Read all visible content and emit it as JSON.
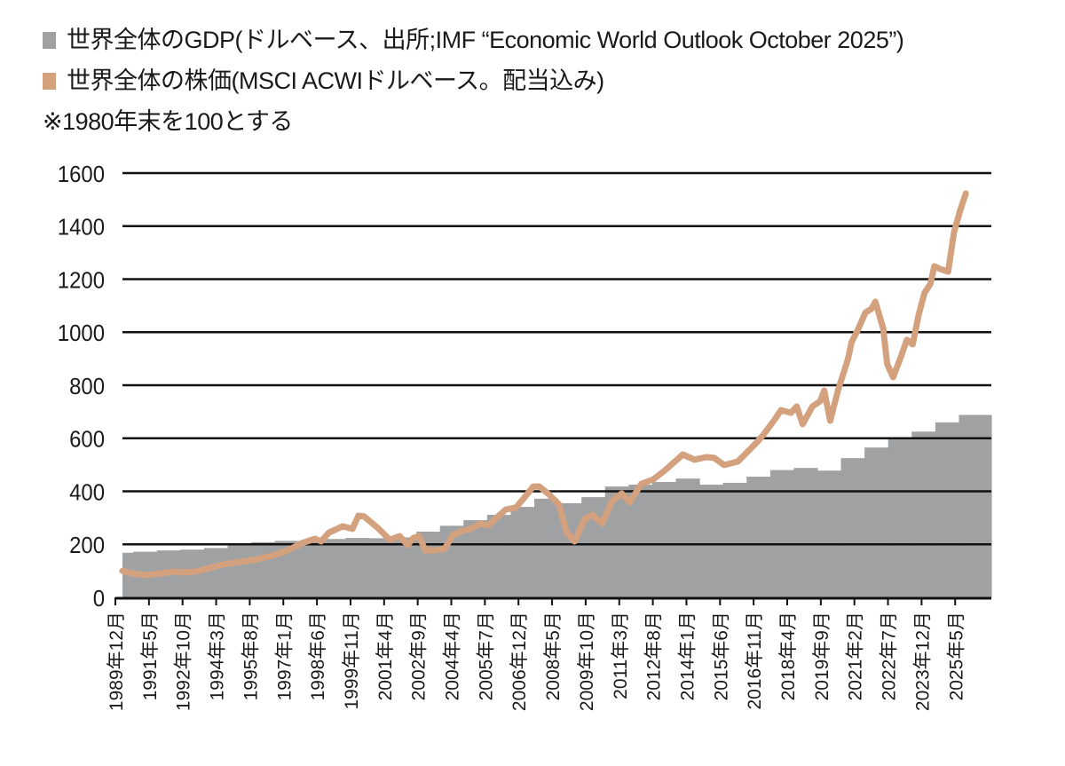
{
  "chart_data": {
    "type": "bar+line",
    "legend": [
      {
        "label": "世界全体のGDP(ドルベース、出所;IMF “Economic World Outlook October 2025”)",
        "color": "#a0a1a3",
        "kind": "area"
      },
      {
        "label": "世界全体の株価(MSCI ACWIドルベース。配当込み)",
        "color": "#d4a17e",
        "kind": "line"
      }
    ],
    "note": "※1980年末を100とする",
    "ylim": [
      0,
      1600
    ],
    "yticks": [
      "0",
      "200",
      "400",
      "600",
      "800",
      "1000",
      "1200",
      "1400",
      "1600"
    ],
    "ytick_values": [
      0,
      200,
      400,
      600,
      800,
      1000,
      1200,
      1400,
      1600
    ],
    "grid": "horizontal",
    "xlim": [
      "1989-12",
      "2026-10"
    ],
    "xticks": [
      "1989年12月",
      "1991年5月",
      "1992年10月",
      "1994年3月",
      "1995年8月",
      "1997年1月",
      "1998年6月",
      "1999年11月",
      "2001年4月",
      "2002年9月",
      "2004年4月",
      "2005年7月",
      "2006年12月",
      "2008年5月",
      "2009年10月",
      "2011年3月",
      "2012年8月",
      "2014年1月",
      "2015年6月",
      "2016年11月",
      "2018年4月",
      "2019年9月",
      "2021年2月",
      "2022年7月",
      "2023年12月",
      "2025年5月"
    ],
    "gdp": {
      "years": [
        1989,
        1990,
        1991,
        1992,
        1993,
        1994,
        1995,
        1996,
        1997,
        1998,
        1999,
        2000,
        2001,
        2002,
        2003,
        2004,
        2005,
        2006,
        2007,
        2008,
        2009,
        2010,
        2011,
        2012,
        2013,
        2014,
        2015,
        2016,
        2017,
        2018,
        2019,
        2020,
        2021,
        2022,
        2023,
        2024,
        2025,
        2026
      ],
      "values": [
        155,
        168,
        172,
        177,
        180,
        186,
        203,
        208,
        213,
        212,
        220,
        224,
        223,
        226,
        248,
        270,
        291,
        311,
        341,
        372,
        355,
        378,
        418,
        425,
        435,
        448,
        425,
        432,
        455,
        480,
        488,
        478,
        525,
        565,
        600,
        625,
        660,
        688
      ]
    },
    "stock": [
      [
        "1989-12",
        100
      ],
      [
        "1990-05",
        90
      ],
      [
        "1990-12",
        84
      ],
      [
        "1991-07",
        90
      ],
      [
        "1992-02",
        97
      ],
      [
        "1992-06",
        94
      ],
      [
        "1993-01",
        97
      ],
      [
        "1993-08",
        110
      ],
      [
        "1994-03",
        124
      ],
      [
        "1994-12",
        134
      ],
      [
        "1995-09",
        144
      ],
      [
        "1996-06",
        161
      ],
      [
        "1996-12",
        177
      ],
      [
        "1997-07",
        204
      ],
      [
        "1998-02",
        221
      ],
      [
        "1998-05",
        211
      ],
      [
        "1998-09",
        244
      ],
      [
        "1999-04",
        268
      ],
      [
        "1999-09",
        258
      ],
      [
        "1999-12",
        308
      ],
      [
        "2000-03",
        305
      ],
      [
        "2000-10",
        261
      ],
      [
        "2001-04",
        217
      ],
      [
        "2001-09",
        231
      ],
      [
        "2002-01",
        197
      ],
      [
        "2002-04",
        224
      ],
      [
        "2002-07",
        231
      ],
      [
        "2002-10",
        177
      ],
      [
        "2003-03",
        177
      ],
      [
        "2003-08",
        184
      ],
      [
        "2003-12",
        234
      ],
      [
        "2004-05",
        251
      ],
      [
        "2004-09",
        258
      ],
      [
        "2005-02",
        278
      ],
      [
        "2005-06",
        271
      ],
      [
        "2005-11",
        305
      ],
      [
        "2006-03",
        331
      ],
      [
        "2006-08",
        338
      ],
      [
        "2006-12",
        372
      ],
      [
        "2007-05",
        418
      ],
      [
        "2007-08",
        418
      ],
      [
        "2008-01",
        388
      ],
      [
        "2008-06",
        351
      ],
      [
        "2008-10",
        244
      ],
      [
        "2009-02",
        211
      ],
      [
        "2009-07",
        295
      ],
      [
        "2009-11",
        311
      ],
      [
        "2010-04",
        278
      ],
      [
        "2010-09",
        362
      ],
      [
        "2011-02",
        392
      ],
      [
        "2011-06",
        358
      ],
      [
        "2011-12",
        428
      ],
      [
        "2012-06",
        445
      ],
      [
        "2012-12",
        479
      ],
      [
        "2013-05",
        512
      ],
      [
        "2013-09",
        539
      ],
      [
        "2014-03",
        519
      ],
      [
        "2014-09",
        529
      ],
      [
        "2015-01",
        526
      ],
      [
        "2015-06",
        499
      ],
      [
        "2016-01",
        512
      ],
      [
        "2016-10",
        579
      ],
      [
        "2017-02",
        613
      ],
      [
        "2017-08",
        673
      ],
      [
        "2017-11",
        706
      ],
      [
        "2018-04",
        696
      ],
      [
        "2018-07",
        720
      ],
      [
        "2018-10",
        653
      ],
      [
        "2019-03",
        720
      ],
      [
        "2019-07",
        740
      ],
      [
        "2019-09",
        780
      ],
      [
        "2019-12",
        666
      ],
      [
        "2020-04",
        780
      ],
      [
        "2020-09",
        897
      ],
      [
        "2020-11",
        964
      ],
      [
        "2021-02",
        1008
      ],
      [
        "2021-06",
        1074
      ],
      [
        "2021-09",
        1088
      ],
      [
        "2021-11",
        1115
      ],
      [
        "2022-03",
        1014
      ],
      [
        "2022-05",
        880
      ],
      [
        "2022-08",
        830
      ],
      [
        "2022-12",
        907
      ],
      [
        "2023-03",
        971
      ],
      [
        "2023-06",
        954
      ],
      [
        "2023-09",
        1064
      ],
      [
        "2023-12",
        1148
      ],
      [
        "2024-03",
        1182
      ],
      [
        "2024-05",
        1249
      ],
      [
        "2024-08",
        1238
      ],
      [
        "2024-12",
        1228
      ],
      [
        "2025-03",
        1376
      ],
      [
        "2025-06",
        1456
      ],
      [
        "2025-09",
        1523
      ]
    ]
  }
}
